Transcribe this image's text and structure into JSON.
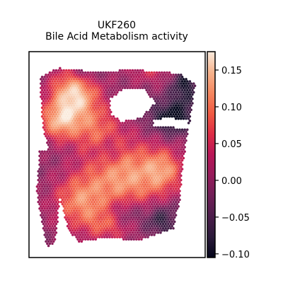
{
  "chart_data": {
    "type": "heatmap",
    "plot_kind": "spatial hex-spot map",
    "title_line1": "UKF260",
    "title_line2": "Bile Acid Metabolism activity",
    "xlabel": "",
    "ylabel": "",
    "colormap": "rocket",
    "color_range": [
      -0.105,
      0.175
    ],
    "colorbar_ticks": [
      0.15,
      0.1,
      0.05,
      0.0,
      -0.05,
      -0.1
    ],
    "colorbar_tick_labels": [
      "0.15",
      "0.10",
      "0.05",
      "0.00",
      "−0.05",
      "−0.10"
    ],
    "grid": false,
    "colormap_stops": [
      "#03051a",
      "#2b1a3a",
      "#4c1d4b",
      "#701f57",
      "#961c5b",
      "#b91657",
      "#dd2c45",
      "#f05b43",
      "#f58860",
      "#f6b48e",
      "#faebdd"
    ],
    "tissue_regions": {
      "main": [
        [
          0.0,
          0.08
        ],
        [
          0.12,
          0.03
        ],
        [
          0.35,
          0.05
        ],
        [
          0.62,
          0.04
        ],
        [
          0.9,
          0.06
        ],
        [
          1.0,
          0.12
        ],
        [
          0.97,
          0.3
        ],
        [
          0.92,
          0.55
        ],
        [
          0.9,
          0.75
        ],
        [
          0.86,
          0.9
        ],
        [
          0.65,
          0.96
        ],
        [
          0.4,
          0.95
        ],
        [
          0.25,
          0.97
        ],
        [
          0.18,
          0.9
        ],
        [
          0.08,
          0.55
        ],
        [
          0.02,
          0.35
        ]
      ],
      "strip": [
        [
          0.0,
          0.48
        ],
        [
          0.1,
          0.47
        ],
        [
          0.14,
          0.62
        ],
        [
          0.12,
          0.82
        ],
        [
          0.1,
          0.97
        ],
        [
          0.05,
          1.0
        ],
        [
          0.02,
          0.9
        ],
        [
          -0.02,
          0.7
        ]
      ],
      "hole": [
        [
          0.45,
          0.2
        ],
        [
          0.55,
          0.14
        ],
        [
          0.68,
          0.15
        ],
        [
          0.74,
          0.22
        ],
        [
          0.65,
          0.3
        ],
        [
          0.53,
          0.32
        ],
        [
          0.46,
          0.28
        ]
      ],
      "notch": [
        [
          0.72,
          0.31
        ],
        [
          0.82,
          0.3
        ],
        [
          0.95,
          0.31
        ],
        [
          0.97,
          0.36
        ],
        [
          0.85,
          0.35
        ],
        [
          0.74,
          0.35
        ]
      ]
    },
    "activity_field": {
      "baseline": -0.005,
      "bumps": [
        {
          "x": 0.22,
          "y": 0.17,
          "sx": 0.11,
          "sy": 0.09,
          "amp": 0.16
        },
        {
          "x": 0.12,
          "y": 0.32,
          "sx": 0.09,
          "sy": 0.07,
          "amp": 0.12
        },
        {
          "x": 0.35,
          "y": 0.35,
          "sx": 0.12,
          "sy": 0.09,
          "amp": 0.08
        },
        {
          "x": 0.55,
          "y": 0.62,
          "sx": 0.18,
          "sy": 0.14,
          "amp": 0.13
        },
        {
          "x": 0.25,
          "y": 0.75,
          "sx": 0.12,
          "sy": 0.1,
          "amp": 0.1
        },
        {
          "x": 0.8,
          "y": 0.58,
          "sx": 0.09,
          "sy": 0.08,
          "amp": 0.09
        },
        {
          "x": 0.45,
          "y": 0.88,
          "sx": 0.12,
          "sy": 0.06,
          "amp": 0.07
        },
        {
          "x": 0.72,
          "y": 0.05,
          "sx": 0.12,
          "sy": 0.05,
          "amp": 0.05
        },
        {
          "x": 0.85,
          "y": 0.3,
          "sx": 0.1,
          "sy": 0.06,
          "amp": -0.11
        },
        {
          "x": 0.93,
          "y": 0.12,
          "sx": 0.06,
          "sy": 0.08,
          "amp": -0.09
        },
        {
          "x": 0.55,
          "y": 0.82,
          "sx": 0.08,
          "sy": 0.06,
          "amp": -0.07
        },
        {
          "x": 0.78,
          "y": 0.85,
          "sx": 0.08,
          "sy": 0.06,
          "amp": -0.08
        },
        {
          "x": 0.3,
          "y": 0.05,
          "sx": 0.06,
          "sy": 0.04,
          "amp": -0.05
        },
        {
          "x": 0.45,
          "y": 0.48,
          "sx": 0.06,
          "sy": 0.05,
          "amp": -0.04
        }
      ]
    }
  }
}
